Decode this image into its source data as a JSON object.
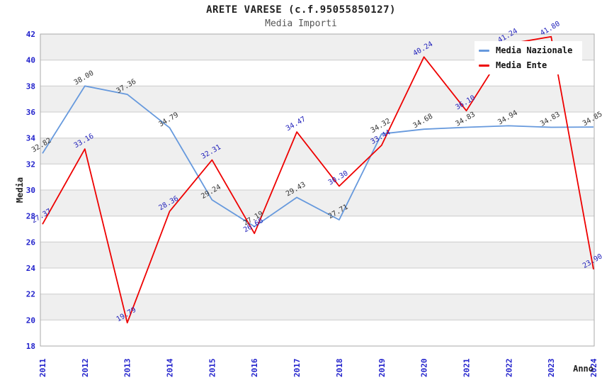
{
  "chart": {
    "title": "ARETE VARESE (c.f.95055850127)",
    "subtitle": "Media Importi",
    "y_axis_label": "Media",
    "x_axis_label": "Anno"
  },
  "chart_data": {
    "type": "line",
    "x": [
      "2011",
      "2012",
      "2013",
      "2014",
      "2015",
      "2016",
      "2017",
      "2018",
      "2019",
      "2020",
      "2021",
      "2022",
      "2023",
      "2024"
    ],
    "series": [
      {
        "name": "Media Nazionale",
        "color": "#6699dd",
        "label_color": "#333333",
        "values": [
          32.82,
          38.0,
          37.36,
          34.79,
          29.24,
          27.19,
          29.43,
          27.71,
          34.32,
          34.68,
          34.83,
          34.94,
          34.83,
          34.85
        ]
      },
      {
        "name": "Media Ente",
        "color": "#ee0000",
        "label_color": "#2222bb",
        "values": [
          27.37,
          33.16,
          19.79,
          28.36,
          32.31,
          26.66,
          34.47,
          30.3,
          33.44,
          40.24,
          36.1,
          41.24,
          41.8,
          23.9
        ]
      }
    ],
    "ylim": [
      18,
      42
    ],
    "y_ticks": [
      18,
      20,
      22,
      24,
      26,
      28,
      30,
      32,
      34,
      36,
      38,
      40,
      42
    ],
    "grid": "horizontal",
    "legend_position": "top-right",
    "band_color": "#efefef",
    "grid_color": "#cccccc",
    "border_color": "#aaaaaa",
    "tick_color": "#2222cc",
    "data_label_rotation": -30,
    "x_tick_rotation": -90
  }
}
